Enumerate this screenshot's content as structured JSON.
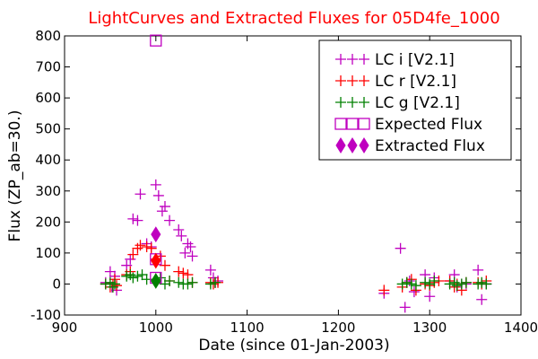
{
  "chart_data": {
    "type": "scatter",
    "title": "LightCurves and Extracted Fluxes for 05D4fe_1000",
    "xlabel": "Date (since 01-Jan-2003)",
    "ylabel": "Flux (ZP_ab=30.)",
    "xlim": [
      900,
      1400
    ],
    "ylim": [
      -100,
      800
    ],
    "xticks": [
      900,
      1000,
      1100,
      1200,
      1300,
      1400
    ],
    "yticks": [
      -100,
      0,
      100,
      200,
      300,
      400,
      500,
      600,
      700,
      800
    ],
    "grid": false,
    "legend_position": "top-right",
    "series": [
      {
        "name": "LC i [V2.1]",
        "marker": "plus",
        "color": "#bf00bf",
        "points": [
          [
            945,
            5
          ],
          [
            950,
            40
          ],
          [
            952,
            -10
          ],
          [
            955,
            25
          ],
          [
            957,
            -20
          ],
          [
            968,
            60
          ],
          [
            972,
            80
          ],
          [
            975,
            210
          ],
          [
            980,
            205
          ],
          [
            983,
            290
          ],
          [
            990,
            130
          ],
          [
            995,
            120
          ],
          [
            1000,
            320
          ],
          [
            1003,
            285
          ],
          [
            1007,
            235
          ],
          [
            1010,
            250
          ],
          [
            1015,
            205
          ],
          [
            1025,
            175
          ],
          [
            1028,
            155
          ],
          [
            1032,
            100
          ],
          [
            1035,
            130
          ],
          [
            1038,
            120
          ],
          [
            1040,
            90
          ],
          [
            1060,
            45
          ],
          [
            1063,
            20
          ],
          [
            1065,
            5
          ],
          [
            1068,
            10
          ],
          [
            1250,
            -30
          ],
          [
            1268,
            115
          ],
          [
            1273,
            -75
          ],
          [
            1278,
            10
          ],
          [
            1283,
            -25
          ],
          [
            1295,
            30
          ],
          [
            1300,
            -40
          ],
          [
            1305,
            20
          ],
          [
            1322,
            10
          ],
          [
            1327,
            30
          ],
          [
            1330,
            -10
          ],
          [
            1335,
            0
          ],
          [
            1340,
            0
          ],
          [
            1353,
            45
          ],
          [
            1357,
            -50
          ],
          [
            1362,
            0
          ]
        ]
      },
      {
        "name": "LC r [V2.1]",
        "marker": "plus",
        "color": "#ff0000",
        "points": [
          [
            945,
            0
          ],
          [
            950,
            -10
          ],
          [
            953,
            0
          ],
          [
            955,
            15
          ],
          [
            957,
            -5
          ],
          [
            968,
            30
          ],
          [
            972,
            40
          ],
          [
            975,
            95
          ],
          [
            980,
            115
          ],
          [
            983,
            125
          ],
          [
            990,
            120
          ],
          [
            995,
            115
          ],
          [
            1000,
            80
          ],
          [
            1005,
            90
          ],
          [
            1010,
            60
          ],
          [
            1015,
            10
          ],
          [
            1025,
            40
          ],
          [
            1030,
            35
          ],
          [
            1035,
            30
          ],
          [
            1040,
            5
          ],
          [
            1060,
            5
          ],
          [
            1063,
            0
          ],
          [
            1065,
            5
          ],
          [
            1068,
            5
          ],
          [
            1250,
            -20
          ],
          [
            1270,
            -10
          ],
          [
            1275,
            5
          ],
          [
            1280,
            15
          ],
          [
            1285,
            -20
          ],
          [
            1295,
            0
          ],
          [
            1300,
            -5
          ],
          [
            1305,
            5
          ],
          [
            1310,
            10
          ],
          [
            1322,
            10
          ],
          [
            1327,
            -10
          ],
          [
            1330,
            0
          ],
          [
            1335,
            -20
          ],
          [
            1340,
            5
          ],
          [
            1353,
            5
          ],
          [
            1357,
            0
          ],
          [
            1362,
            10
          ]
        ]
      },
      {
        "name": "LC g [V2.1]",
        "marker": "plus",
        "color": "#008000",
        "points": [
          [
            945,
            0
          ],
          [
            950,
            5
          ],
          [
            953,
            -10
          ],
          [
            955,
            0
          ],
          [
            968,
            25
          ],
          [
            972,
            30
          ],
          [
            975,
            20
          ],
          [
            980,
            25
          ],
          [
            985,
            30
          ],
          [
            990,
            15
          ],
          [
            1000,
            10
          ],
          [
            1005,
            20
          ],
          [
            1010,
            0
          ],
          [
            1015,
            10
          ],
          [
            1025,
            5
          ],
          [
            1030,
            0
          ],
          [
            1035,
            0
          ],
          [
            1040,
            5
          ],
          [
            1060,
            0
          ],
          [
            1065,
            5
          ],
          [
            1270,
            0
          ],
          [
            1275,
            5
          ],
          [
            1280,
            0
          ],
          [
            1285,
            -5
          ],
          [
            1295,
            5
          ],
          [
            1300,
            0
          ],
          [
            1305,
            10
          ],
          [
            1322,
            0
          ],
          [
            1327,
            5
          ],
          [
            1330,
            -5
          ],
          [
            1335,
            0
          ],
          [
            1340,
            5
          ],
          [
            1353,
            0
          ],
          [
            1357,
            5
          ],
          [
            1362,
            0
          ]
        ]
      },
      {
        "name": "Expected Flux",
        "marker": "open-square",
        "color": "#bf00bf",
        "points": [
          [
            1000,
            785
          ],
          [
            1000,
            80
          ],
          [
            1000,
            20
          ]
        ]
      },
      {
        "name": "Extracted Flux",
        "marker": "diamond",
        "color": "#bf00bf",
        "points": [
          [
            1000,
            160
          ],
          [
            1000,
            75
          ],
          [
            1000,
            10
          ]
        ],
        "point_colors": [
          "#bf00bf",
          "#ff0000",
          "#008000"
        ]
      }
    ]
  }
}
